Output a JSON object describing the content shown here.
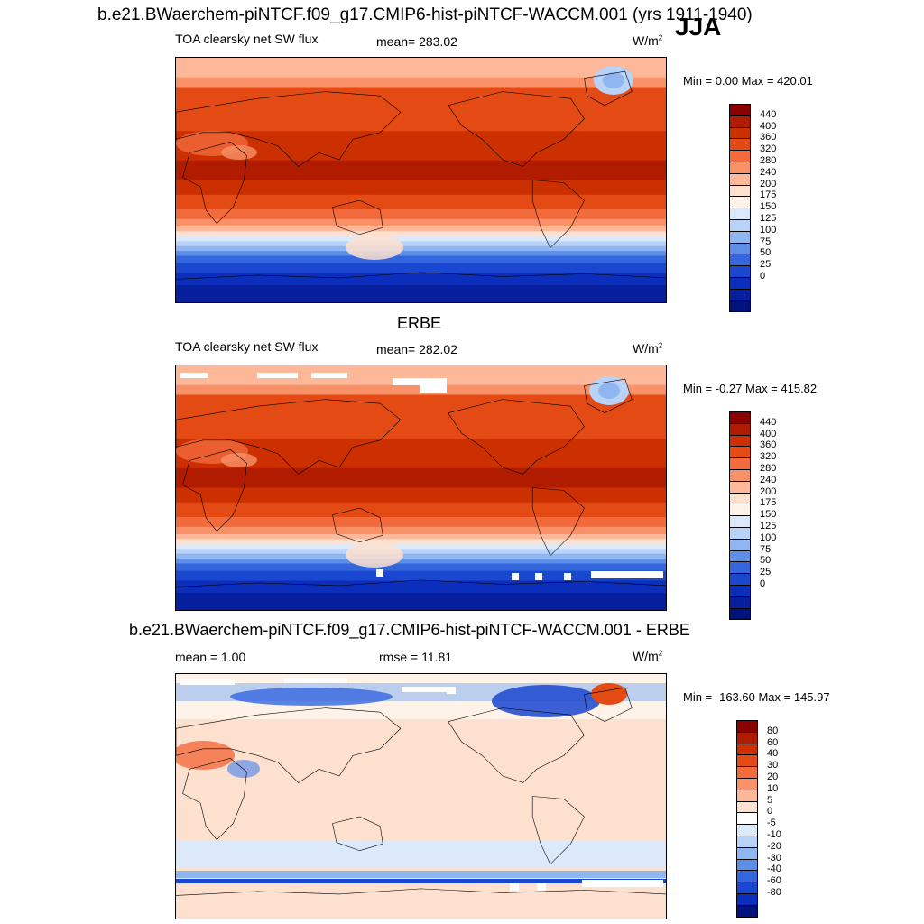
{
  "header": {
    "title": "b.e21.BWaerchem-piNTCF.f09_g17.CMIP6-hist-piNTCF-WACCM.001 (yrs 1911-1940)",
    "season": "JJA"
  },
  "panels": [
    {
      "section_title": "",
      "variable": "TOA clearsky net SW flux",
      "stat": "mean= 283.02",
      "units": "W/m",
      "units_exp": "2",
      "minmax": "Min =   0.00 Max = 420.01",
      "colorbar": {
        "labels": [
          "440",
          "400",
          "360",
          "320",
          "280",
          "240",
          "200",
          "175",
          "150",
          "125",
          "100",
          "75",
          "50",
          "25",
          "0"
        ],
        "colors": [
          "#8b0000",
          "#b11b00",
          "#cc2f00",
          "#e34a14",
          "#f36a3c",
          "#f99168",
          "#fdb89a",
          "#fee0cf",
          "#fff2e8",
          "#dbe9fb",
          "#b8d3f7",
          "#8fb6f1",
          "#5e8fe8",
          "#3466de",
          "#1a47cf",
          "#0c2ebd",
          "#051f9e",
          "#00127e"
        ]
      }
    },
    {
      "section_title": "ERBE",
      "variable": "TOA clearsky net SW flux",
      "stat": "mean= 282.02",
      "units": "W/m",
      "units_exp": "2",
      "minmax": "Min =  -0.27 Max = 415.82",
      "colorbar": {
        "labels": [
          "440",
          "400",
          "360",
          "320",
          "280",
          "240",
          "200",
          "175",
          "150",
          "125",
          "100",
          "75",
          "50",
          "25",
          "0"
        ],
        "colors": [
          "#8b0000",
          "#b11b00",
          "#cc2f00",
          "#e34a14",
          "#f36a3c",
          "#f99168",
          "#fdb89a",
          "#fee0cf",
          "#fff2e8",
          "#dbe9fb",
          "#b8d3f7",
          "#8fb6f1",
          "#5e8fe8",
          "#3466de",
          "#1a47cf",
          "#0c2ebd",
          "#051f9e",
          "#00127e"
        ]
      }
    },
    {
      "section_title": "b.e21.BWaerchem-piNTCF.f09_g17.CMIP6-hist-piNTCF-WACCM.001 - ERBE",
      "variable": "mean =   1.00",
      "stat": "rmse =  11.81",
      "units": "W/m",
      "units_exp": "2",
      "minmax": "Min = -163.60 Max = 145.97",
      "colorbar": {
        "labels": [
          "80",
          "60",
          "40",
          "30",
          "20",
          "10",
          "5",
          "0",
          "-5",
          "-10",
          "-20",
          "-30",
          "-40",
          "-60",
          "-80"
        ],
        "colors": [
          "#8b0000",
          "#b11b00",
          "#cc2f00",
          "#e34a14",
          "#f36a3c",
          "#f99168",
          "#fdb89a",
          "#fee0cf",
          "#ffffff",
          "#dbe9fb",
          "#b8d3f7",
          "#8fb6f1",
          "#5e8fe8",
          "#3466de",
          "#1a47cf",
          "#0c2ebd",
          "#00127e"
        ]
      }
    }
  ]
}
